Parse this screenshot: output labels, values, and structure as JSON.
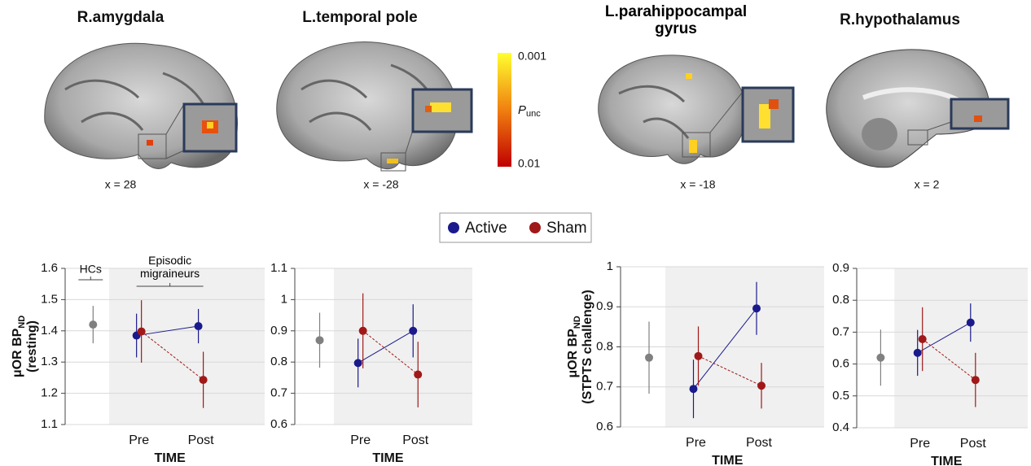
{
  "brain_panels": [
    {
      "title": "R.amygdala",
      "slice": "x = 28"
    },
    {
      "title": "L.temporal pole",
      "slice": "x = -28"
    },
    {
      "title": "L.parahippocampal gyrus",
      "slice": "x = -18"
    },
    {
      "title": "R.hypothalamus",
      "slice": "x = 2"
    }
  ],
  "colorbar": {
    "top": "0.001",
    "bottom": "0.01",
    "label": "P",
    "label_subscript": "unc"
  },
  "legend": [
    {
      "name": "Active",
      "color": "#1a1a8c"
    },
    {
      "name": "Sham",
      "color": "#a01818"
    }
  ],
  "chart_data": [
    {
      "type": "errorbar",
      "ylabel": {
        "text": "μOR BP",
        "subscript": "ND",
        "line2": "(resting)"
      },
      "xlabel": "TIME",
      "annotations": [
        "HCs",
        "Episodic migraineurs"
      ],
      "categories": [
        null,
        "Pre",
        "Post"
      ],
      "ylim": [
        1.1,
        1.6
      ],
      "yticks": [
        1.1,
        1.2,
        1.3,
        1.4,
        1.5,
        1.6
      ],
      "grid": true,
      "series": [
        {
          "color": "#808080",
          "values": [
            1.42,
            null,
            null
          ],
          "errors": [
            0.06,
            null,
            null
          ]
        },
        {
          "color": "#1a1a8c",
          "values": [
            null,
            1.385,
            1.415
          ],
          "errors": [
            null,
            0.07,
            0.055
          ]
        },
        {
          "color": "#a01818",
          "values": [
            null,
            1.398,
            1.243
          ],
          "errors": [
            null,
            0.1,
            0.09
          ]
        }
      ]
    },
    {
      "type": "errorbar",
      "xlabel": "TIME",
      "categories": [
        null,
        "Pre",
        "Post"
      ],
      "ylim": [
        0.6,
        1.1
      ],
      "yticks": [
        0.6,
        0.7,
        0.8,
        0.9,
        1.0,
        1.1
      ],
      "grid": true,
      "series": [
        {
          "color": "#808080",
          "values": [
            0.87,
            null,
            null
          ],
          "errors": [
            0.088,
            null,
            null
          ]
        },
        {
          "color": "#1a1a8c",
          "values": [
            null,
            0.797,
            0.9
          ],
          "errors": [
            null,
            0.078,
            0.085
          ]
        },
        {
          "color": "#a01818",
          "values": [
            null,
            0.9,
            0.76
          ],
          "errors": [
            null,
            0.12,
            0.105
          ]
        }
      ]
    },
    {
      "type": "errorbar",
      "ylabel": {
        "text": "μOR BP",
        "subscript": "ND",
        "line2": "(STPTS challenge)"
      },
      "xlabel": "TIME",
      "categories": [
        null,
        "Pre",
        "Post"
      ],
      "ylim": [
        0.6,
        1.0
      ],
      "yticks": [
        0.6,
        0.7,
        0.8,
        0.9,
        1.0
      ],
      "grid": true,
      "series": [
        {
          "color": "#808080",
          "values": [
            0.773,
            null,
            null
          ],
          "errors": [
            0.09,
            null,
            null
          ]
        },
        {
          "color": "#1a1a8c",
          "values": [
            null,
            0.695,
            0.896
          ],
          "errors": [
            null,
            0.073,
            0.066
          ]
        },
        {
          "color": "#a01818",
          "values": [
            null,
            0.777,
            0.703
          ],
          "errors": [
            null,
            0.074,
            0.057
          ]
        }
      ]
    },
    {
      "type": "errorbar",
      "xlabel": "TIME",
      "categories": [
        null,
        "Pre",
        "Post"
      ],
      "ylim": [
        0.4,
        0.9
      ],
      "yticks": [
        0.4,
        0.5,
        0.6,
        0.7,
        0.8,
        0.9
      ],
      "grid": true,
      "series": [
        {
          "color": "#808080",
          "values": [
            0.62,
            null,
            null
          ],
          "errors": [
            0.088,
            null,
            null
          ]
        },
        {
          "color": "#1a1a8c",
          "values": [
            null,
            0.635,
            0.73
          ],
          "errors": [
            null,
            0.072,
            0.06
          ]
        },
        {
          "color": "#a01818",
          "values": [
            null,
            0.678,
            0.55
          ],
          "errors": [
            null,
            0.1,
            0.085
          ]
        }
      ]
    }
  ]
}
